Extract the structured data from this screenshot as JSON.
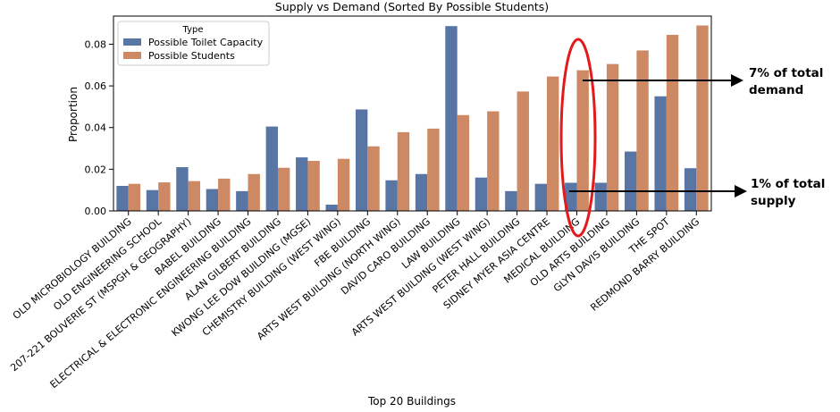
{
  "chart_data": {
    "type": "bar",
    "title": "Supply vs Demand (Sorted By Possible Students)",
    "xlabel": "Top 20 Buildings",
    "ylabel": "Proportion",
    "ylim": [
      0,
      0.0935
    ],
    "yticks": [
      0.0,
      0.02,
      0.04,
      0.06,
      0.08
    ],
    "ytick_labels": [
      "0.00",
      "0.02",
      "0.04",
      "0.06",
      "0.08"
    ],
    "grid": false,
    "legend": {
      "title": "Type",
      "placement": "top-left"
    },
    "categories": [
      "OLD MICROBIOLOGY BUILDING",
      "OLD ENGINEERING SCHOOL",
      "207-221 BOUVERIE ST (MSPGH & GEOGRAPHY)",
      "BABEL BUILDING",
      "ELECTRICAL & ELECTRONIC ENGINEERING BUILDING",
      "ALAN GILBERT BUILDING",
      "KWONG LEE DOW BUILDING (MGSE)",
      "CHEMISTRY BUILDING (WEST WING)",
      "FBE BUILDING",
      "ARTS WEST BUILDING (NORTH WING)",
      "DAVID CARO BUILDING",
      "LAW BUILDING",
      "ARTS WEST BUILDING (WEST WING)",
      "PETER HALL BUILDING",
      "SIDNEY MYER ASIA CENTRE",
      "MEDICAL BUILDING",
      "OLD ARTS BUILDING",
      "GLYN DAVIS BUILDING",
      "THE SPOT",
      "REDMOND BARRY BUILDING"
    ],
    "series": [
      {
        "name": "Possible Toilet Capacity",
        "color": "#5875a4",
        "values": [
          0.012,
          0.01,
          0.021,
          0.0105,
          0.0095,
          0.0405,
          0.0257,
          0.003,
          0.0487,
          0.0147,
          0.0177,
          0.0887,
          0.016,
          0.0095,
          0.013,
          0.0135,
          0.0135,
          0.0285,
          0.055,
          0.0205
        ]
      },
      {
        "name": "Possible Students",
        "color": "#cc8963",
        "values": [
          0.013,
          0.0137,
          0.0143,
          0.0155,
          0.0177,
          0.0207,
          0.024,
          0.025,
          0.031,
          0.0378,
          0.0395,
          0.046,
          0.0478,
          0.0573,
          0.0645,
          0.0675,
          0.0705,
          0.077,
          0.0845,
          0.089
        ]
      }
    ],
    "annotations": [
      {
        "text_lines": [
          "7% of total",
          "demand"
        ],
        "target_category": "MEDICAL BUILDING",
        "target_value": 0.063
      },
      {
        "text_lines": [
          "1% of total",
          "supply"
        ],
        "target_category": "MEDICAL BUILDING",
        "target_value": 0.0093
      }
    ],
    "highlight": {
      "shape": "ellipse",
      "color": "#e31a1c",
      "category": "MEDICAL BUILDING",
      "series": "Possible Students"
    }
  }
}
